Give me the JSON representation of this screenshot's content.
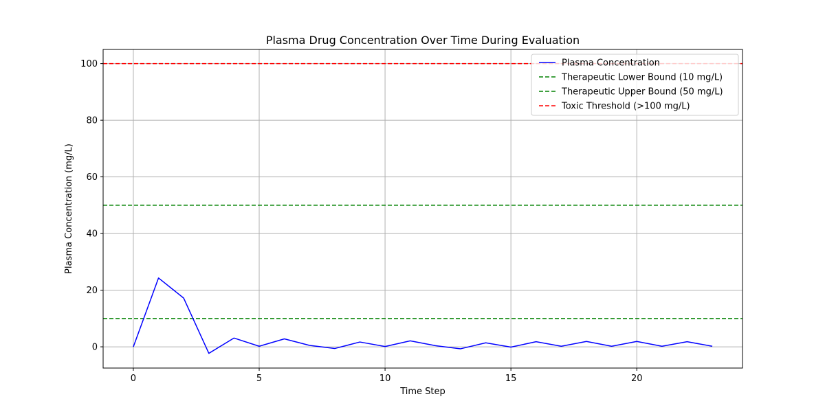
{
  "chart_data": {
    "type": "line",
    "title": "Plasma Drug Concentration Over Time During Evaluation",
    "xlabel": "Time Step",
    "ylabel": "Plasma Concentration (mg/L)",
    "xlim": [
      -1.2,
      24.2
    ],
    "ylim": [
      -7.5,
      105
    ],
    "x_ticks": [
      0,
      5,
      10,
      15,
      20
    ],
    "y_ticks": [
      0,
      20,
      40,
      60,
      80,
      100
    ],
    "grid": true,
    "legend_position": "top-right",
    "series": [
      {
        "name": "Plasma Concentration",
        "color": "#0000ff",
        "style": "solid",
        "x": [
          0,
          1,
          2,
          3,
          4,
          5,
          6,
          7,
          8,
          9,
          10,
          11,
          12,
          13,
          14,
          15,
          16,
          17,
          18,
          19,
          20,
          21,
          22,
          23
        ],
        "y": [
          0,
          24.3,
          17.2,
          -2.3,
          3.1,
          0.2,
          2.8,
          0.5,
          -0.6,
          1.7,
          0.1,
          2.1,
          0.4,
          -0.7,
          1.4,
          -0.1,
          1.8,
          0.2,
          1.9,
          0.2,
          1.9,
          0.2,
          1.8,
          0.2
        ]
      }
    ],
    "reference_lines": [
      {
        "name": "Therapeutic Lower Bound (10 mg/L)",
        "y": 10,
        "color": "#008000",
        "style": "dashed"
      },
      {
        "name": "Therapeutic Upper Bound (50 mg/L)",
        "y": 50,
        "color": "#008000",
        "style": "dashed"
      },
      {
        "name": "Toxic Threshold (>100 mg/L)",
        "y": 100,
        "color": "#ff0000",
        "style": "dashed"
      }
    ]
  }
}
